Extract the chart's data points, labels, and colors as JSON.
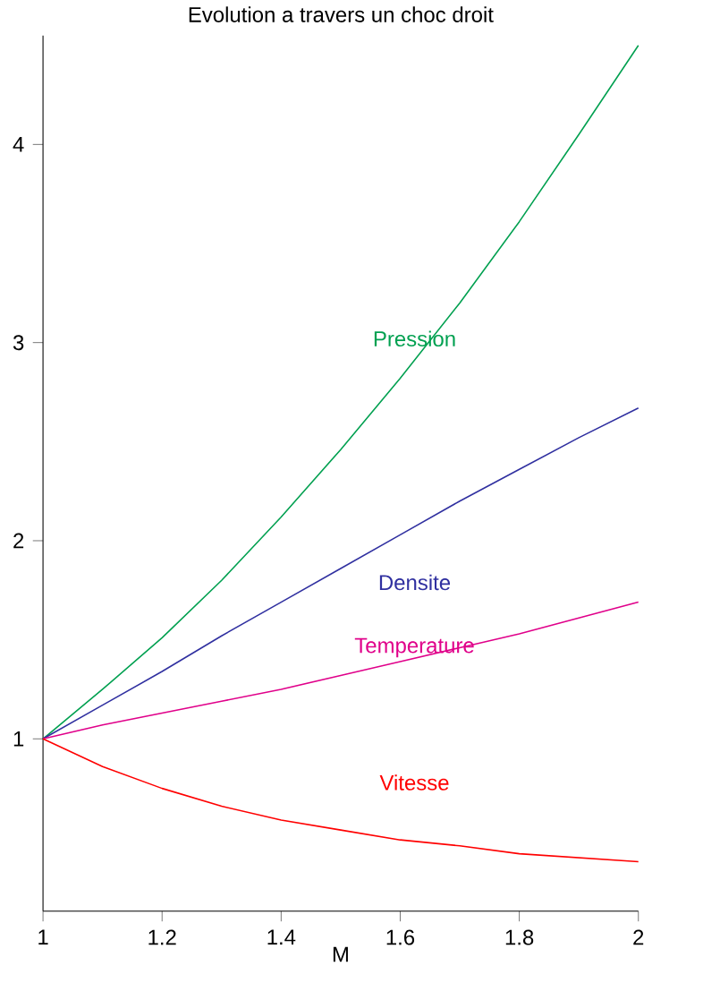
{
  "chart_data": {
    "type": "line",
    "title": "Evolution a travers un choc droit",
    "xlabel": "M",
    "x": [
      1,
      1.1,
      1.2,
      1.3,
      1.4,
      1.5,
      1.6,
      1.7,
      1.8,
      1.9,
      2
    ],
    "series": [
      {
        "name": "Pression",
        "color": "#00a050",
        "values": [
          1,
          1.25,
          1.51,
          1.8,
          2.12,
          2.46,
          2.82,
          3.2,
          3.61,
          4.05,
          4.5
        ]
      },
      {
        "name": "Densite",
        "color": "#3030a0",
        "values": [
          1,
          1.17,
          1.34,
          1.52,
          1.69,
          1.86,
          2.03,
          2.2,
          2.36,
          2.52,
          2.67
        ]
      },
      {
        "name": "Temperature",
        "color": "#e0008a",
        "values": [
          1,
          1.07,
          1.13,
          1.19,
          1.25,
          1.32,
          1.39,
          1.46,
          1.53,
          1.61,
          1.69
        ]
      },
      {
        "name": "Vitesse",
        "color": "#ff0000",
        "values": [
          1,
          0.86,
          0.75,
          0.66,
          0.59,
          0.54,
          0.49,
          0.46,
          0.42,
          0.4,
          0.38
        ]
      }
    ],
    "xlim": [
      1,
      2
    ],
    "ylim": [
      0.13,
      4.55
    ],
    "xticks": [
      1,
      1.2,
      1.4,
      1.6,
      1.8,
      2
    ],
    "yticks": [
      1,
      2,
      3,
      4
    ],
    "marker": "none",
    "line_style": "solid"
  }
}
